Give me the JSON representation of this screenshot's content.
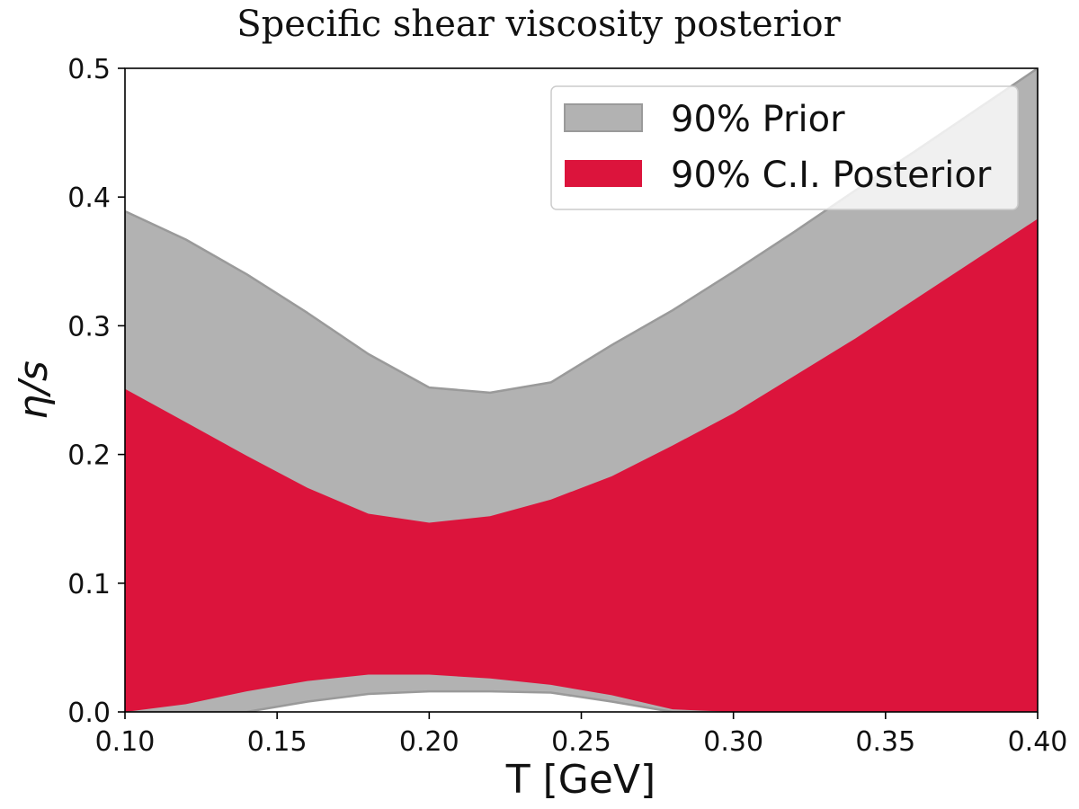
{
  "chart_data": {
    "type": "area",
    "title": "Specific shear viscosity posterior",
    "xlabel": "T [GeV]",
    "ylabel": "η/s",
    "xlim": [
      0.1,
      0.4
    ],
    "ylim": [
      0.0,
      0.5
    ],
    "xticks": [
      "0.10",
      "0.15",
      "0.20",
      "0.25",
      "0.30",
      "0.35",
      "0.40"
    ],
    "yticks": [
      "0.0",
      "0.1",
      "0.2",
      "0.3",
      "0.4",
      "0.5"
    ],
    "legend_position": "top-right",
    "grid": false,
    "x": [
      0.1,
      0.12,
      0.14,
      0.16,
      0.18,
      0.2,
      0.22,
      0.24,
      0.26,
      0.28,
      0.3,
      0.32,
      0.34,
      0.36,
      0.38,
      0.4
    ],
    "series": [
      {
        "name": "90% Prior",
        "color": "#b2b2b2",
        "edge_color": "#9a9a9a",
        "upper": [
          0.389,
          0.367,
          0.34,
          0.31,
          0.278,
          0.252,
          0.248,
          0.256,
          0.285,
          0.312,
          0.342,
          0.373,
          0.405,
          0.436,
          0.468,
          0.5
        ],
        "lower": [
          0.0,
          0.0,
          0.0,
          0.008,
          0.014,
          0.016,
          0.016,
          0.015,
          0.008,
          0.0,
          0.0,
          0.0,
          0.0,
          0.0,
          0.0,
          0.0
        ]
      },
      {
        "name": "90% C.I. Posterior",
        "color": "#dc143c",
        "upper": [
          0.251,
          0.225,
          0.199,
          0.174,
          0.154,
          0.147,
          0.152,
          0.165,
          0.183,
          0.207,
          0.232,
          0.261,
          0.29,
          0.321,
          0.352,
          0.383
        ],
        "lower": [
          0.0,
          0.006,
          0.016,
          0.024,
          0.029,
          0.029,
          0.026,
          0.021,
          0.013,
          0.002,
          0.0,
          0.0,
          0.0,
          0.0,
          0.0,
          0.0
        ]
      }
    ]
  }
}
